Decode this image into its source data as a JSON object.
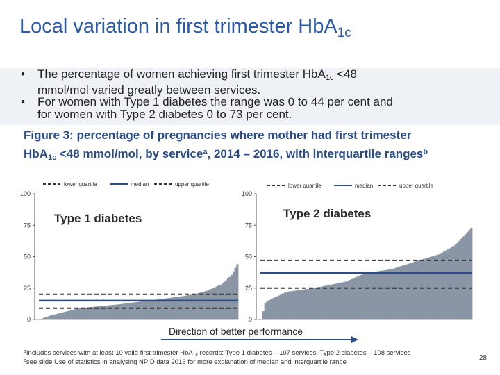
{
  "title": {
    "main": "Local variation in first trimester Hb",
    "tail": "A",
    "sub": "1c"
  },
  "bullets": [
    {
      "dot": "•",
      "line1_a": "The percentage of women achieving first trimester HbA",
      "line1_sub": "1c",
      "line1_b": " <48",
      "line2": "mmol/mol varied greatly between services."
    },
    {
      "dot": "•",
      "line1_a": "For women with Type 1 diabetes the range was 0 to 44 per cent and",
      "line2": "for women with Type 2 diabetes 0 to 73 per cent."
    }
  ],
  "figure_caption": {
    "line1": "Figure 3: percentage of pregnancies where mother had first trimester",
    "line2_a": "HbA",
    "line2_sub": "1c",
    "line2_b": " <48 mmol/mol, by service",
    "sup_a": "a",
    "line2_c": ", 2014 – 2016, with interquartile ranges",
    "sup_b": "b"
  },
  "legend": {
    "lower": "lower quartile",
    "median": "median",
    "upper": "upper quartile"
  },
  "direction_label": "Direction of better performance",
  "footnotes": {
    "a_mark": "a",
    "a_text_1": "Includes services with at least 10 valid first trimester HbA",
    "a_sub": "1c",
    "a_text_2": " records: Type 1 diabetes – 107 services, Type 2 diabetes – 108 services",
    "b_mark": "b",
    "b_text": "see slide Use of statistics in analysing NPID data 2016 for more explanation of median and interquartile range"
  },
  "page_number": "28",
  "colors": {
    "title": "#2a5aa7",
    "bars": "#8a95a5",
    "median": "#2a4d8a",
    "quartile": "#333333",
    "caption": "#2a4d8a"
  },
  "chart_data": [
    {
      "type": "bar",
      "title": "Type 1 diabetes",
      "ylim": [
        0,
        100
      ],
      "yticks": [
        0,
        25,
        50,
        75,
        100
      ],
      "n_services": 107,
      "range": [
        0,
        44
      ],
      "lower_quartile": 9,
      "median": 15,
      "upper_quartile": 20,
      "sorted_profile": [
        [
          0,
          0
        ],
        [
          0.05,
          3
        ],
        [
          0.2,
          9
        ],
        [
          0.4,
          12
        ],
        [
          0.55,
          15
        ],
        [
          0.7,
          18
        ],
        [
          0.78,
          20
        ],
        [
          0.85,
          23
        ],
        [
          0.92,
          28
        ],
        [
          0.97,
          35
        ],
        [
          1,
          44
        ]
      ]
    },
    {
      "type": "bar",
      "title": "Type 2 diabetes",
      "ylim": [
        0,
        100
      ],
      "yticks": [
        0,
        25,
        50,
        75,
        100
      ],
      "n_services": 108,
      "range": [
        0,
        73
      ],
      "lower_quartile": 25,
      "median": 37,
      "upper_quartile": 47,
      "sorted_profile": [
        [
          0,
          0
        ],
        [
          0.02,
          14
        ],
        [
          0.12,
          22
        ],
        [
          0.25,
          25
        ],
        [
          0.4,
          30
        ],
        [
          0.5,
          37
        ],
        [
          0.62,
          40
        ],
        [
          0.75,
          47
        ],
        [
          0.85,
          52
        ],
        [
          0.93,
          60
        ],
        [
          1,
          73
        ]
      ]
    }
  ]
}
